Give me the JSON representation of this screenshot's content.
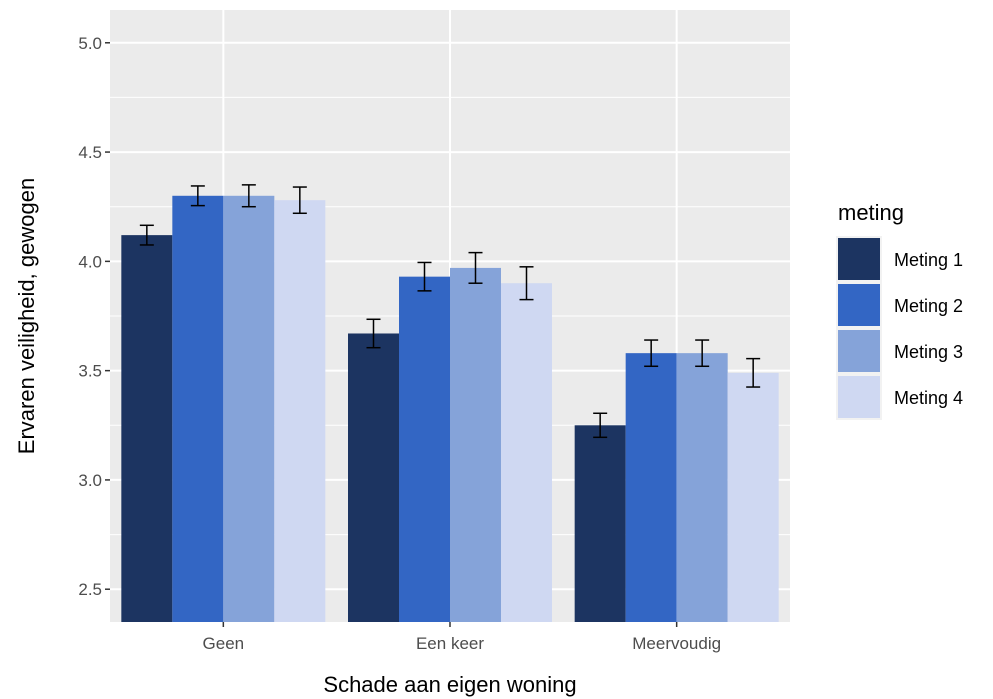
{
  "chart_data": {
    "type": "bar",
    "xlabel": "Schade aan eigen woning",
    "ylabel": "Ervaren veiligheid, gewogen",
    "ylim": [
      2.35,
      5.15
    ],
    "yticks": [
      "2.5",
      "3.0",
      "3.5",
      "4.0",
      "4.5",
      "5.0"
    ],
    "categories": [
      "Geen",
      "Een keer",
      "Meervoudig"
    ],
    "legend": {
      "title": "meting",
      "placement": "right"
    },
    "grid": true,
    "series": [
      {
        "name": "Meting 1",
        "color": "#1c3461",
        "values": [
          4.12,
          3.67,
          3.25
        ],
        "errors": [
          0.045,
          0.065,
          0.055
        ]
      },
      {
        "name": "Meting 2",
        "color": "#3366c4",
        "values": [
          4.3,
          3.93,
          3.58
        ],
        "errors": [
          0.045,
          0.065,
          0.06
        ]
      },
      {
        "name": "Meting 3",
        "color": "#85a3d9",
        "values": [
          4.3,
          3.97,
          3.58
        ],
        "errors": [
          0.05,
          0.07,
          0.06
        ]
      },
      {
        "name": "Meting 4",
        "color": "#cfd8f2",
        "values": [
          4.28,
          3.9,
          3.49
        ],
        "errors": [
          0.06,
          0.075,
          0.065
        ]
      }
    ]
  }
}
